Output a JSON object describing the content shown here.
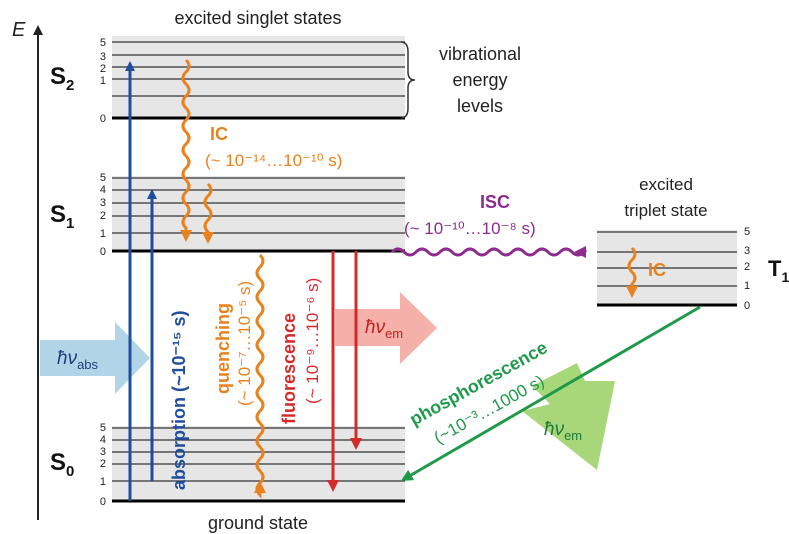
{
  "energy_axis_label": "E",
  "titles": {
    "excited_singlet": "excited singlet states",
    "ground_state": "ground state",
    "excited_triplet_line1": "excited",
    "excited_triplet_line2": "triplet state",
    "vibrational_line1": "vibrational",
    "vibrational_line2": "energy",
    "vibrational_line3": "levels"
  },
  "states": {
    "s2": {
      "main": "S",
      "sub": "2"
    },
    "s1": {
      "main": "S",
      "sub": "1"
    },
    "s0": {
      "main": "S",
      "sub": "0"
    },
    "t1": {
      "main": "T",
      "sub": "1"
    }
  },
  "level_numbers": [
    "0",
    "1",
    "2",
    "3",
    "4",
    "5"
  ],
  "triplet_level_numbers": [
    "0",
    "1",
    "2",
    "3",
    "5"
  ],
  "processes": {
    "ic_label": "IC",
    "ic_time": "(~ 10⁻¹⁴…10⁻¹⁰ s)",
    "isc_label": "ISC",
    "isc_time": "(~ 10⁻¹⁰…10⁻⁸ s)",
    "triplet_ic": "IC",
    "absorption": "absorption (~10⁻¹⁵ s)",
    "quenching_line1": "quenching",
    "quenching_line2": "(~ 10⁻⁷…10⁻⁵ s)",
    "fluorescence_line1": "fluorescence",
    "fluorescence_line2": "(~ 10⁻⁹…10⁻⁶ s)",
    "phosphorescence_line1": "phosphorescence",
    "phosphorescence_line2": "(~10⁻³…1000 s)"
  },
  "photons": {
    "abs": {
      "h": "ħν",
      "sub": "abs"
    },
    "em_fluor": {
      "h": "ħν",
      "sub": "em"
    },
    "em_phos": {
      "h": "ħν",
      "sub": "em"
    }
  },
  "colors": {
    "absorption": "#1f4e9e",
    "ic_quenching": "#e8821e",
    "fluorescence": "#d42a2a",
    "isc": "#8e2b8e",
    "phosphorescence": "#1e9a4a",
    "photon_abs": "#a9cfe3",
    "photon_em_red": "#f3a7a0",
    "photon_em_green": "#9ed36a",
    "band_fill": "#e6e6e6"
  }
}
